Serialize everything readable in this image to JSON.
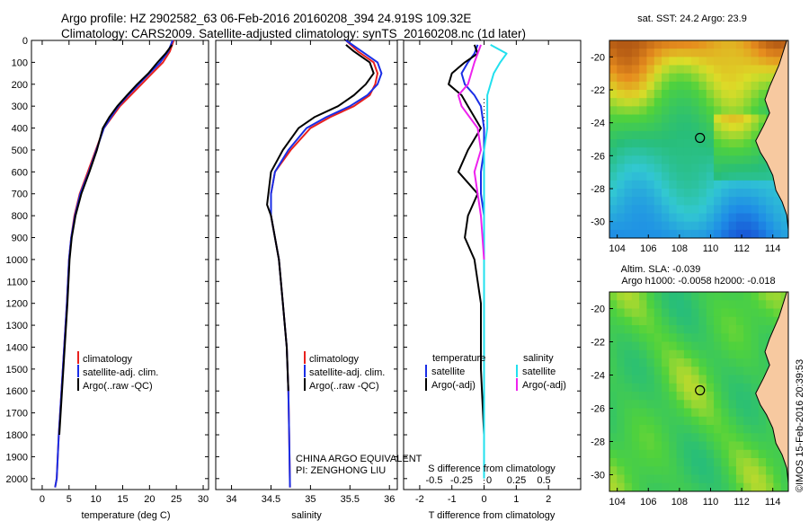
{
  "header": {
    "line1": "Argo profile: HZ 2902582_63 06-Feb-2016 20160208_394 24.919S 109.32E",
    "line2": "Climatology: CARS2009. Satellite-adjusted climatology: synTS_20160208.nc (1d later)"
  },
  "colors": {
    "climatology": "#e8211e",
    "satellite": "#1a2ee6",
    "argo": "#000000",
    "satellite_salinity": "#22e0ee",
    "argo_salinity": "#ee22ee",
    "land": "#f7c9a0"
  },
  "chart_data": [
    {
      "type": "line",
      "id": "temperature",
      "xlabel": "temperature (deg C)",
      "xlim": [
        -2,
        31
      ],
      "xticks": [
        0,
        5,
        10,
        15,
        20,
        25,
        30
      ],
      "ylim": [
        0,
        2050
      ],
      "yticks": [
        0,
        100,
        200,
        300,
        400,
        500,
        600,
        700,
        800,
        900,
        1000,
        1100,
        1200,
        1300,
        1400,
        1500,
        1600,
        1700,
        1800,
        1900,
        2000
      ],
      "legend": {
        "placement": "lower-center",
        "entries": [
          "climatology",
          "satellite-adj. clim.",
          "Argo(..raw -QC)"
        ]
      },
      "series": [
        {
          "name": "climatology",
          "color_key": "climatology",
          "x": [
            24.5,
            23.8,
            22.5,
            20.5,
            18.5,
            16.5,
            14.5,
            13.0,
            11.5,
            10.0,
            8.5,
            7.0,
            6.0,
            5.4,
            5.0,
            4.6,
            4.1,
            3.6,
            3.1,
            2.7,
            2.4
          ],
          "y": [
            0,
            50,
            100,
            150,
            200,
            250,
            300,
            350,
            400,
            500,
            600,
            700,
            800,
            900,
            1000,
            1200,
            1400,
            1600,
            1800,
            2000,
            2040
          ]
        },
        {
          "name": "satellite-adj. clim.",
          "color_key": "satellite",
          "x": [
            24.3,
            23.5,
            22.0,
            20.0,
            18.0,
            16.0,
            14.2,
            12.8,
            11.5,
            10.1,
            8.7,
            7.1,
            6.1,
            5.4,
            5.0,
            4.6,
            4.1,
            3.6,
            3.1,
            2.7,
            2.4
          ],
          "y": [
            0,
            50,
            100,
            150,
            200,
            250,
            300,
            350,
            400,
            500,
            600,
            700,
            800,
            900,
            1000,
            1200,
            1400,
            1600,
            1800,
            2000,
            2040
          ]
        },
        {
          "name": "Argo(..raw -QC)",
          "color_key": "argo",
          "x": [
            24.2,
            23.0,
            21.5,
            19.8,
            17.7,
            15.8,
            14.0,
            12.5,
            11.3,
            10.2,
            8.8,
            7.3,
            6.2,
            5.5,
            5.1,
            4.7,
            4.2,
            3.7,
            3.2
          ],
          "y": [
            20,
            60,
            100,
            150,
            200,
            250,
            300,
            350,
            400,
            500,
            600,
            700,
            800,
            900,
            1000,
            1200,
            1400,
            1600,
            1800
          ]
        }
      ]
    },
    {
      "type": "line",
      "id": "salinity",
      "xlabel": "salinity",
      "xlim": [
        33.8,
        36.1
      ],
      "xticks": [
        34,
        34.5,
        35,
        35.5,
        36
      ],
      "ylim": [
        0,
        2050
      ],
      "legend": {
        "placement": "lower-center",
        "entries": [
          "climatology",
          "satellite-adj. clim.",
          "Argo(..raw -QC)"
        ]
      },
      "annotation": [
        "CHINA ARGO EQUIVALENT",
        "PI: ZENGHONG LIU"
      ],
      "series": [
        {
          "name": "climatology",
          "color_key": "climatology",
          "x": [
            35.45,
            35.6,
            35.8,
            35.85,
            35.82,
            35.75,
            35.55,
            35.25,
            35.0,
            34.75,
            34.55,
            34.5,
            34.5,
            34.55,
            34.6,
            34.65,
            34.7,
            34.72,
            34.73,
            34.74
          ],
          "y": [
            0,
            50,
            100,
            150,
            200,
            250,
            300,
            350,
            400,
            500,
            600,
            700,
            800,
            900,
            1000,
            1200,
            1400,
            1600,
            1800,
            2040
          ]
        },
        {
          "name": "satellite-adj. clim.",
          "color_key": "satellite",
          "x": [
            35.45,
            35.65,
            35.85,
            35.9,
            35.85,
            35.72,
            35.5,
            35.2,
            34.95,
            34.72,
            34.55,
            34.5,
            34.5,
            34.55,
            34.6,
            34.65,
            34.7,
            34.72,
            34.73,
            34.74
          ],
          "y": [
            0,
            50,
            100,
            150,
            200,
            250,
            300,
            350,
            400,
            500,
            600,
            700,
            800,
            900,
            1000,
            1200,
            1400,
            1600,
            1800,
            2040
          ]
        },
        {
          "name": "Argo(..raw -QC)",
          "color_key": "argo",
          "x": [
            35.45,
            35.55,
            35.75,
            35.8,
            35.7,
            35.55,
            35.35,
            35.05,
            34.85,
            34.65,
            34.5,
            34.45,
            34.5,
            34.55,
            34.6,
            34.65,
            34.7,
            34.72
          ],
          "y": [
            20,
            50,
            100,
            150,
            200,
            250,
            300,
            350,
            400,
            500,
            600,
            750,
            800,
            900,
            1000,
            1200,
            1400,
            1600
          ]
        }
      ]
    },
    {
      "type": "line",
      "id": "difference",
      "xlabel": "T difference from climatology",
      "xlabel_top": "S difference from climatology",
      "xlim": [
        -2.5,
        3.0
      ],
      "xticks": [
        -2,
        -1,
        0,
        1,
        2
      ],
      "xticks_s": [
        "-0.5",
        "-0.25",
        "0",
        "0.25",
        "0.5"
      ],
      "ylim": [
        0,
        2050
      ],
      "legend_left": {
        "title": "temperature",
        "entries": [
          "satellite",
          "Argo(-adj)"
        ]
      },
      "legend_right": {
        "title": "salinity",
        "entries": [
          "satellite",
          "Argo(-adj)"
        ]
      },
      "series": [
        {
          "name": "satellite",
          "group": "temperature",
          "color_key": "satellite",
          "x": [
            -0.2,
            -0.3,
            -0.5,
            -0.7,
            -0.6,
            -0.3,
            -0.1,
            0.0,
            0.0,
            -0.1,
            -0.1,
            0.0,
            0.0
          ],
          "y": [
            20,
            60,
            100,
            150,
            200,
            250,
            300,
            400,
            500,
            600,
            700,
            800,
            1000
          ]
        },
        {
          "name": "Argo(-adj)",
          "group": "temperature",
          "color_key": "argo",
          "x": [
            -0.3,
            -0.2,
            -0.6,
            -1.0,
            -1.1,
            -0.7,
            -0.5,
            -0.1,
            -0.5,
            -0.8,
            -0.2,
            -0.5,
            -0.6,
            -0.3,
            -0.1,
            -0.1,
            0.0
          ],
          "y": [
            20,
            60,
            100,
            150,
            200,
            250,
            300,
            400,
            500,
            600,
            700,
            800,
            900,
            1000,
            1200,
            1500,
            1800
          ]
        },
        {
          "name": "satellite",
          "group": "salinity",
          "color_key": "satellite_salinity",
          "x": [
            0.2,
            0.7,
            0.5,
            0.3,
            0.2,
            0.1,
            0.1,
            0.1,
            0.0,
            0.0,
            0.0,
            0.0,
            0.0
          ],
          "y": [
            20,
            60,
            100,
            150,
            200,
            250,
            300,
            400,
            500,
            600,
            800,
            1000,
            2000
          ]
        },
        {
          "name": "Argo(-adj)",
          "group": "salinity",
          "color_key": "argo_salinity",
          "x": [
            -0.1,
            -0.2,
            -0.3,
            -0.4,
            -0.5,
            -0.8,
            -0.7,
            -0.2,
            -0.1,
            -0.3,
            -0.1,
            0.0
          ],
          "y": [
            20,
            60,
            100,
            150,
            200,
            250,
            300,
            400,
            500,
            600,
            800,
            1000
          ]
        }
      ]
    },
    {
      "type": "heatmap",
      "id": "sst-map",
      "title": "sat. SST: 24.2  Argo: 23.9",
      "xlim": [
        103.5,
        115
      ],
      "ylim": [
        -31,
        -19
      ],
      "xticks": [
        104,
        106,
        108,
        110,
        112,
        114
      ],
      "yticks": [
        -20,
        -22,
        -24,
        -26,
        -28,
        -30
      ],
      "marker": {
        "lon": 109.32,
        "lat": -24.919
      }
    },
    {
      "type": "heatmap",
      "id": "sla-map",
      "title": "Altim. SLA: -0.039",
      "subtitle": "Argo h1000: -0.0058  h2000: -0.018",
      "xlim": [
        103.5,
        115
      ],
      "ylim": [
        -31,
        -19
      ],
      "xticks": [
        104,
        106,
        108,
        110,
        112,
        114
      ],
      "yticks": [
        -20,
        -22,
        -24,
        -26,
        -28,
        -30
      ],
      "marker": {
        "lon": 109.32,
        "lat": -24.919
      }
    }
  ],
  "credit": "©IMOS 15-Feb-2016 20:39:53"
}
